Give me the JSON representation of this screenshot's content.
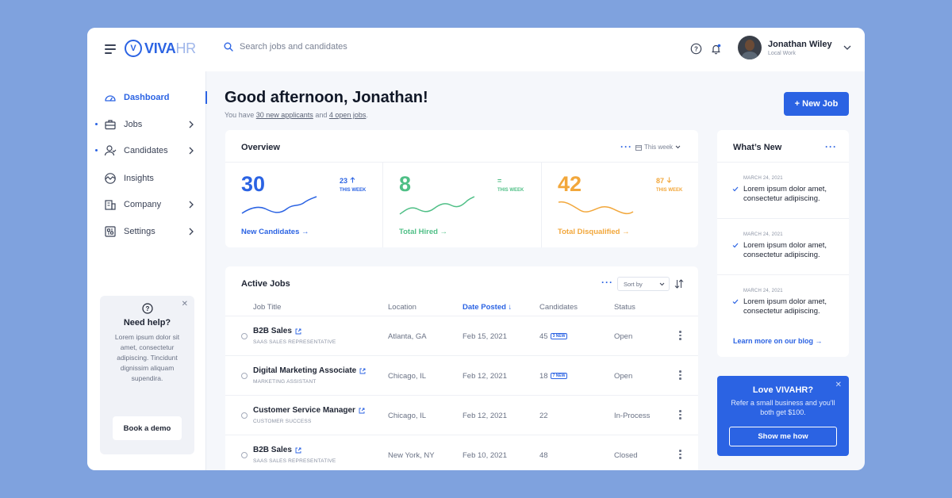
{
  "brand": {
    "logo_main": "VIVA",
    "logo_suffix": "HR",
    "logo_mark": "V"
  },
  "search": {
    "placeholder": "Search jobs and candidates"
  },
  "user": {
    "name": "Jonathan Wiley",
    "subtitle": "Local Work"
  },
  "sidebar": {
    "items": [
      {
        "label": "Dashboard",
        "icon": "dashboard-gauge-icon",
        "active": true
      },
      {
        "label": "Jobs",
        "icon": "briefcase-icon",
        "dot": true,
        "chevron": true
      },
      {
        "label": "Candidates",
        "icon": "user-icon",
        "dot": true,
        "chevron": true
      },
      {
        "label": "Insights",
        "icon": "insights-icon"
      },
      {
        "label": "Company",
        "icon": "building-icon",
        "chevron": true
      },
      {
        "label": "Settings",
        "icon": "settings-icon",
        "chevron": true
      }
    ],
    "help": {
      "title": "Need help?",
      "body": "Lorem ipsum dolor sit amet, consectetur adipiscing. Tincidunt dignissim aliquam supendira.",
      "button": "Book a demo"
    }
  },
  "header": {
    "greeting": "Good afternoon, Jonathan!",
    "sub_prefix": "You have",
    "sub_applicants": "30 new applicants",
    "sub_and": "and",
    "sub_jobs": "4 open jobs",
    "sub_suffix": ".",
    "new_job_button": "+ New Job"
  },
  "overview": {
    "title": "Overview",
    "period": "This week",
    "stats": [
      {
        "value": "30",
        "delta": "23",
        "delta_dir": "up",
        "week_label": "THIS WEEK",
        "link": "New Candidates",
        "color": "#2b63e3"
      },
      {
        "value": "8",
        "delta": "=",
        "delta_dir": "flat",
        "week_label": "THIS WEEK",
        "link": "Total Hired",
        "color": "#4fbf86"
      },
      {
        "value": "42",
        "delta": "87",
        "delta_dir": "down",
        "week_label": "THIS WEEK",
        "link": "Total Disqualified",
        "color": "#f2a73b"
      }
    ]
  },
  "jobs": {
    "title": "Active Jobs",
    "sort_label": "Sort by",
    "columns": [
      "Job Title",
      "Location",
      "Date Posted",
      "Candidates",
      "Status"
    ],
    "rows": [
      {
        "title": "B2B Sales",
        "subtitle": "SAAS SALES REPRESENTATIVE",
        "location": "Atlanta, GA",
        "date": "Feb 15, 2021",
        "candidates": "45",
        "badge": "3 NEW",
        "status": "Open"
      },
      {
        "title": "Digital Marketing Associate",
        "subtitle": "MARKETING ASSISTANT",
        "location": "Chicago, IL",
        "date": "Feb 12, 2021",
        "candidates": "18",
        "badge": "7 NEW",
        "status": "Open"
      },
      {
        "title": "Customer Service Manager",
        "subtitle": "CUSTOMER SUCCESS",
        "location": "Chicago, IL",
        "date": "Feb 12, 2021",
        "candidates": "22",
        "badge": "",
        "status": "In-Process"
      },
      {
        "title": "B2B Sales",
        "subtitle": "SAAS SALES REPRESENTATIVE",
        "location": "New York, NY",
        "date": "Feb 10, 2021",
        "candidates": "48",
        "badge": "",
        "status": "Closed"
      }
    ]
  },
  "whats_new": {
    "title": "What’s New",
    "items": [
      {
        "date": "MARCH 24, 2021",
        "text": "Lorem ipsum dolor amet, consectetur adipiscing."
      },
      {
        "date": "MARCH 24, 2021",
        "text": "Lorem ipsum dolor amet, consectetur adipiscing."
      },
      {
        "date": "MARCH 24, 2021",
        "text": "Lorem ipsum dolor amet, consectetur adipiscing."
      }
    ],
    "link": "Learn more on our blog"
  },
  "promo": {
    "title": "Love VIVAHR?",
    "body": "Refer a small business and you'll both get $100.",
    "button": "Show me how"
  },
  "colors": {
    "accent": "#2b63e3",
    "green": "#4fbf86",
    "orange": "#f2a73b",
    "background": "#7FA2DE"
  }
}
